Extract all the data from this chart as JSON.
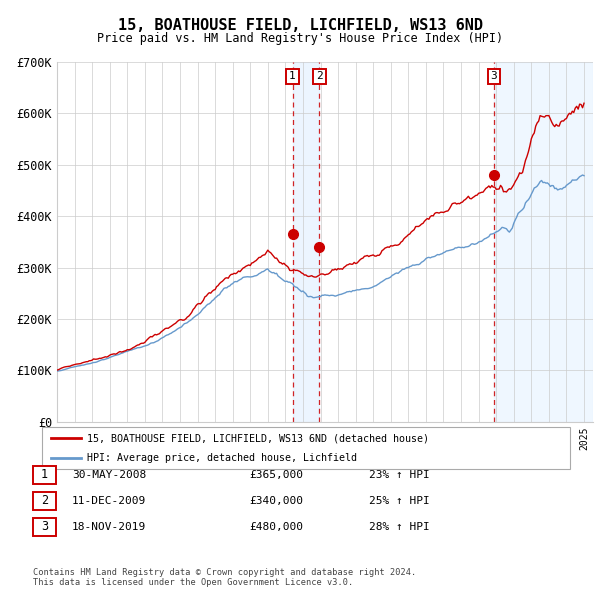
{
  "title": "15, BOATHOUSE FIELD, LICHFIELD, WS13 6ND",
  "subtitle": "Price paid vs. HM Land Registry's House Price Index (HPI)",
  "legend_line1": "15, BOATHOUSE FIELD, LICHFIELD, WS13 6ND (detached house)",
  "legend_line2": "HPI: Average price, detached house, Lichfield",
  "red_color": "#cc0000",
  "blue_color": "#6699cc",
  "bg_span_color": "#ddeeff",
  "grid_color": "#cccccc",
  "transactions": [
    {
      "label": "1",
      "date_num": 2008.41,
      "price": 365000
    },
    {
      "label": "2",
      "date_num": 2009.94,
      "price": 340000
    },
    {
      "label": "3",
      "date_num": 2019.88,
      "price": 480000
    }
  ],
  "table_rows": [
    [
      "1",
      "30-MAY-2008",
      "£365,000",
      "23% ↑ HPI"
    ],
    [
      "2",
      "11-DEC-2009",
      "£340,000",
      "25% ↑ HPI"
    ],
    [
      "3",
      "18-NOV-2019",
      "£480,000",
      "28% ↑ HPI"
    ]
  ],
  "footer": "Contains HM Land Registry data © Crown copyright and database right 2024.\nThis data is licensed under the Open Government Licence v3.0.",
  "ylim": [
    0,
    700000
  ],
  "yticks": [
    0,
    100000,
    200000,
    300000,
    400000,
    500000,
    600000,
    700000
  ],
  "ytick_labels": [
    "£0",
    "£100K",
    "£200K",
    "£300K",
    "£400K",
    "£500K",
    "£600K",
    "£700K"
  ],
  "xstart": 1995.0,
  "xend": 2025.5
}
